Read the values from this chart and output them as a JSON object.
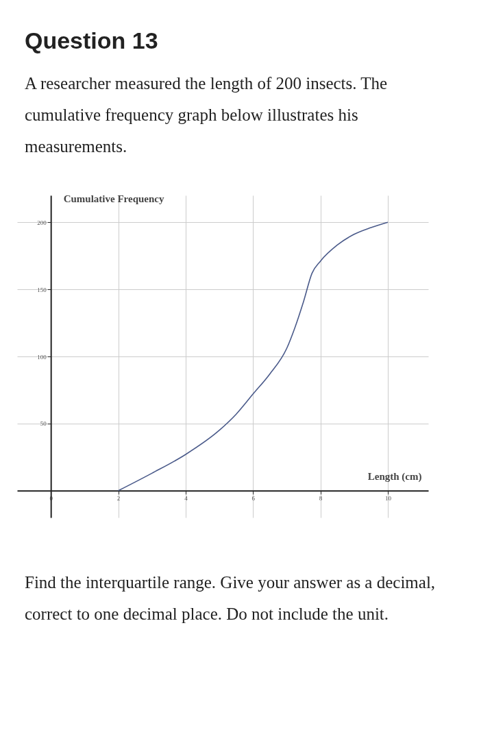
{
  "chart_data": {
    "type": "line",
    "title": "Question 13",
    "subtitle": "A researcher measured the length of 200 insects. The cumulative frequency graph below illustrates his measurements.",
    "xlabel": "Length (cm)",
    "ylabel": "Cumulative Frequency",
    "annotations": [
      "Find the interquartile range. Give your answer as a decimal, correct to one decimal place. Do not include the unit."
    ],
    "x": [
      2,
      3,
      4,
      5,
      5.5,
      6,
      6.5,
      7,
      7.25,
      7.5,
      7.75,
      8,
      8.5,
      9,
      9.5,
      10
    ],
    "series": [
      {
        "color": "#4a5a8a",
        "values": [
          0,
          13,
          27,
          45,
          57,
          72,
          87,
          106,
          122,
          141,
          162,
          171,
          183,
          191,
          196,
          200
        ]
      }
    ],
    "xlim": [
      -1,
      11.2
    ],
    "ylim": [
      -20,
      220
    ],
    "xticks": [
      0,
      2,
      4,
      6,
      8,
      10
    ],
    "yticks": [
      50,
      100,
      150,
      200
    ],
    "grid": true,
    "marker": "none",
    "line_style": "solid"
  }
}
